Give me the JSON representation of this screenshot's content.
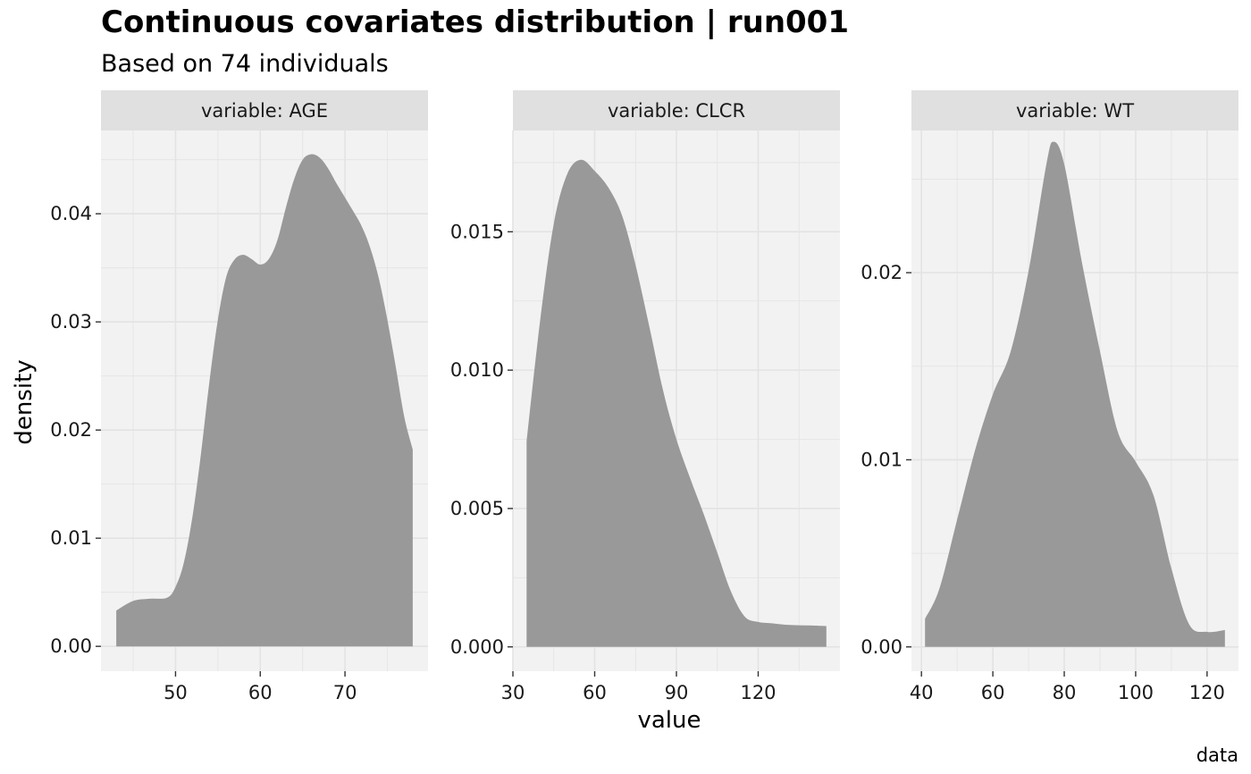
{
  "title": "Continuous covariates distribution | run001",
  "subtitle": "Based on 74 individuals",
  "caption": "data",
  "chart_data": {
    "type": "area",
    "xlabel": "value",
    "ylabel": "density",
    "fill_color": "#999999",
    "panel_bg": "#f2f2f2",
    "strip_bg": "#e0e0e0",
    "grid_color": "#e3e3e3",
    "panels": [
      {
        "strip": "variable: AGE",
        "xlim": [
          41.2,
          79.8
        ],
        "ylim": [
          -0.0023,
          0.0477
        ],
        "xticks": [
          50,
          60,
          70
        ],
        "yticks": [
          0.0,
          0.01,
          0.02,
          0.03,
          0.04
        ],
        "ytick_labels": [
          "0.00",
          "0.01",
          "0.02",
          "0.03",
          "0.04"
        ],
        "x": [
          43,
          45,
          47,
          49,
          50,
          51,
          52,
          53,
          54,
          55,
          56,
          57,
          58,
          59,
          60,
          61,
          62,
          63,
          64,
          65,
          66,
          67,
          68,
          69,
          70,
          71,
          72,
          73,
          74,
          75,
          76,
          77,
          78
        ],
        "y": [
          0.0033,
          0.0042,
          0.0044,
          0.0045,
          0.0055,
          0.0078,
          0.012,
          0.0178,
          0.0245,
          0.0302,
          0.0342,
          0.0358,
          0.0362,
          0.0358,
          0.0353,
          0.0358,
          0.0375,
          0.0405,
          0.0432,
          0.045,
          0.0455,
          0.0452,
          0.0442,
          0.0428,
          0.0415,
          0.0402,
          0.0388,
          0.0368,
          0.034,
          0.0302,
          0.0258,
          0.0212,
          0.0182
        ]
      },
      {
        "strip": "variable: CLCR",
        "xlim": [
          30,
          150
        ],
        "ylim": [
          -0.00088,
          0.01866
        ],
        "xticks": [
          30,
          60,
          90,
          120
        ],
        "yticks": [
          0.0,
          0.005,
          0.01,
          0.015
        ],
        "ytick_labels": [
          "0.000",
          "0.005",
          "0.010",
          "0.015"
        ],
        "x": [
          35,
          40,
          45,
          50,
          55,
          60,
          65,
          70,
          75,
          80,
          85,
          90,
          95,
          100,
          105,
          110,
          115,
          120,
          125,
          130,
          135,
          140,
          145
        ],
        "y": [
          0.0074,
          0.0118,
          0.0153,
          0.0171,
          0.0176,
          0.0172,
          0.0166,
          0.0156,
          0.0138,
          0.0116,
          0.0093,
          0.0075,
          0.0061,
          0.0048,
          0.0034,
          0.002,
          0.0011,
          0.0009,
          0.00085,
          0.0008,
          0.00078,
          0.00077,
          0.00075
        ]
      },
      {
        "strip": "variable: WT",
        "xlim": [
          37.2,
          128.8
        ],
        "ylim": [
          -0.0013,
          0.0276
        ],
        "xticks": [
          40,
          60,
          80,
          100,
          120
        ],
        "yticks": [
          0.0,
          0.01,
          0.02
        ],
        "ytick_labels": [
          "0.00",
          "0.01",
          "0.02"
        ],
        "x": [
          41,
          45,
          50,
          55,
          60,
          65,
          70,
          75,
          77,
          80,
          85,
          90,
          95,
          100,
          105,
          110,
          115,
          120,
          125
        ],
        "y": [
          0.0015,
          0.0031,
          0.0068,
          0.0105,
          0.0135,
          0.0158,
          0.0201,
          0.0258,
          0.027,
          0.0258,
          0.0205,
          0.0158,
          0.0115,
          0.0099,
          0.0081,
          0.0042,
          0.0012,
          0.0008,
          0.0009
        ]
      }
    ]
  }
}
